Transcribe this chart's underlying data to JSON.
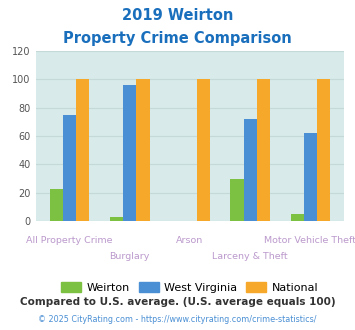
{
  "title_line1": "2019 Weirton",
  "title_line2": "Property Crime Comparison",
  "title_color": "#1a6fbd",
  "groups": [
    "All Property Crime",
    "Burglary",
    "Arson",
    "Larceny & Theft",
    "Motor Vehicle Theft"
  ],
  "weirton": [
    23,
    3,
    0,
    30,
    5
  ],
  "west_virginia": [
    75,
    96,
    0,
    72,
    62
  ],
  "national": [
    100,
    100,
    100,
    100,
    100
  ],
  "weirton_color": "#7dc142",
  "wv_color": "#4a8fd4",
  "national_color": "#f5a82a",
  "ylim": [
    0,
    120
  ],
  "yticks": [
    0,
    20,
    40,
    60,
    80,
    100,
    120
  ],
  "grid_color": "#c5d9d9",
  "bg_color": "#d8eaea",
  "bar_width": 0.22,
  "footnote1": "Compared to U.S. average. (U.S. average equals 100)",
  "footnote2": "© 2025 CityRating.com - https://www.cityrating.com/crime-statistics/",
  "footnote1_color": "#333333",
  "footnote2_color": "#4a8fd4",
  "legend_labels": [
    "Weirton",
    "West Virginia",
    "National"
  ],
  "label_color": "#bb99cc",
  "label_fontsize": 6.8
}
